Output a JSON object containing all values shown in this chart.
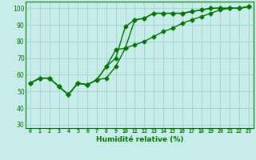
{
  "xlabel": "Humidité relative (%)",
  "bg_color": "#c8ecea",
  "grid_color": "#a0d4d0",
  "line_color": "#007700",
  "marker": "D",
  "markersize": 2.5,
  "linewidth": 1.0,
  "xlim": [
    -0.5,
    23.5
  ],
  "ylim": [
    28,
    104
  ],
  "xticks": [
    0,
    1,
    2,
    3,
    4,
    5,
    6,
    7,
    8,
    9,
    10,
    11,
    12,
    13,
    14,
    15,
    16,
    17,
    18,
    19,
    20,
    21,
    22,
    23
  ],
  "yticks": [
    30,
    40,
    50,
    60,
    70,
    80,
    90,
    100
  ],
  "series": [
    {
      "x": [
        0,
        1,
        2,
        3,
        4,
        5,
        6,
        7,
        8,
        9,
        10,
        11,
        12,
        13,
        14,
        15,
        16,
        17,
        18,
        19,
        20,
        21,
        22,
        23
      ],
      "y": [
        55,
        58,
        58,
        53,
        48,
        55,
        54,
        57,
        65,
        70,
        89,
        93,
        94,
        97,
        97,
        97,
        97,
        98,
        99,
        100,
        100,
        100,
        100,
        101
      ]
    },
    {
      "x": [
        0,
        1,
        2,
        3,
        4,
        5,
        6,
        7,
        8,
        9,
        10,
        11,
        12,
        13,
        14,
        15,
        16,
        17,
        18,
        19,
        20,
        21,
        22,
        23
      ],
      "y": [
        55,
        58,
        58,
        53,
        48,
        55,
        54,
        57,
        65,
        75,
        76,
        93,
        94,
        97,
        97,
        97,
        97,
        98,
        99,
        100,
        100,
        100,
        100,
        101
      ]
    },
    {
      "x": [
        0,
        1,
        2,
        3,
        4,
        5,
        6,
        7,
        8,
        9,
        10,
        11,
        12,
        13,
        14,
        15,
        16,
        17,
        18,
        19,
        20,
        21,
        22,
        23
      ],
      "y": [
        55,
        58,
        58,
        53,
        48,
        55,
        54,
        57,
        58,
        65,
        76,
        78,
        80,
        83,
        86,
        88,
        91,
        93,
        95,
        97,
        99,
        100,
        100,
        101
      ]
    }
  ]
}
